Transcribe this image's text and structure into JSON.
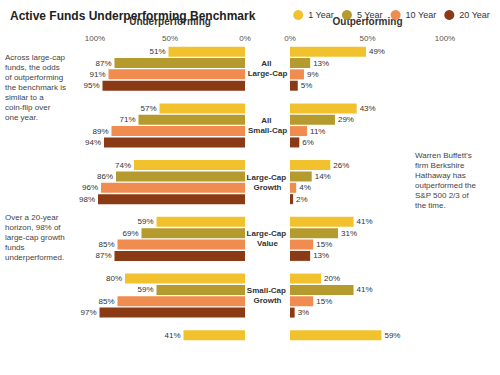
{
  "chart_data": {
    "type": "bar",
    "title": "Active Funds Underperforming Benchmark",
    "orientation": "horizontal",
    "data_labels": true,
    "legend": "top-right",
    "grid": false,
    "categories": [
      "All Large-Cap",
      "All Small-Cap",
      "Large-Cap Growth",
      "Large-Cap Value",
      "Small-Cap Growth",
      null
    ],
    "panels": [
      {
        "title": "Underperforming",
        "xlim": [
          100,
          0
        ],
        "xticks": [
          {
            "value": 100,
            "label": "100%"
          },
          {
            "value": 50,
            "label": "50%"
          },
          {
            "value": 0,
            "label": "0%"
          }
        ],
        "series": [
          {
            "name": "1 Year",
            "color": "#F2C12E",
            "values": [
              51,
              57,
              74,
              59,
              80,
              41
            ],
            "value_labels": [
              "51%",
              "57%",
              "74%",
              "59%",
              "80%",
              "41%"
            ]
          },
          {
            "name": "5 Year",
            "color": "#B59A2E",
            "values": [
              87,
              71,
              86,
              69,
              59,
              null
            ],
            "value_labels": [
              "87%",
              "71%",
              "86%",
              "69%",
              "59%",
              null
            ]
          },
          {
            "name": "10 Year",
            "color": "#F08C4F",
            "values": [
              91,
              89,
              96,
              85,
              85,
              null
            ],
            "value_labels": [
              "91%",
              "89%",
              "96%",
              "85%",
              "85%",
              null
            ]
          },
          {
            "name": "20 Year",
            "color": "#8A3B16",
            "values": [
              95,
              94,
              98,
              87,
              97,
              null
            ],
            "value_labels": [
              "95%",
              "94%",
              "98%",
              "87%",
              "97%",
              null
            ]
          }
        ]
      },
      {
        "title": "Outperforming",
        "xlim": [
          0,
          100
        ],
        "xticks": [
          {
            "value": 0,
            "label": "0%"
          },
          {
            "value": 50,
            "label": "50%"
          },
          {
            "value": 100,
            "label": "100%"
          }
        ],
        "series": [
          {
            "name": "1 Year",
            "color": "#F2C12E",
            "values": [
              49,
              43,
              26,
              41,
              20,
              59
            ],
            "value_labels": [
              "49%",
              "43%",
              "26%",
              "41%",
              "20%",
              "59%"
            ]
          },
          {
            "name": "5 Year",
            "color": "#B59A2E",
            "values": [
              13,
              29,
              14,
              31,
              41,
              null
            ],
            "value_labels": [
              "13%",
              "29%",
              "14%",
              "31%",
              "41%",
              null
            ]
          },
          {
            "name": "10 Year",
            "color": "#F08C4F",
            "values": [
              9,
              11,
              4,
              15,
              15,
              null
            ],
            "value_labels": [
              "9%",
              "11%",
              "4%",
              "15%",
              "15%",
              null
            ]
          },
          {
            "name": "20 Year",
            "color": "#8A3B16",
            "values": [
              5,
              6,
              2,
              13,
              3,
              null
            ],
            "value_labels": [
              "5%",
              "6%",
              "2%",
              "13%",
              "3%",
              null
            ]
          }
        ]
      }
    ],
    "annotations": [
      "Across large-cap funds, the odds of outperforming the benchmark is similar to a coin-flip over one year.",
      "Over a 20-year horizon, 98% of large-cap growth funds underperformed.",
      "Warren Buffett's firm Berkshire Hathaway has outperformed the S&P 500 2/3 of the time."
    ]
  }
}
